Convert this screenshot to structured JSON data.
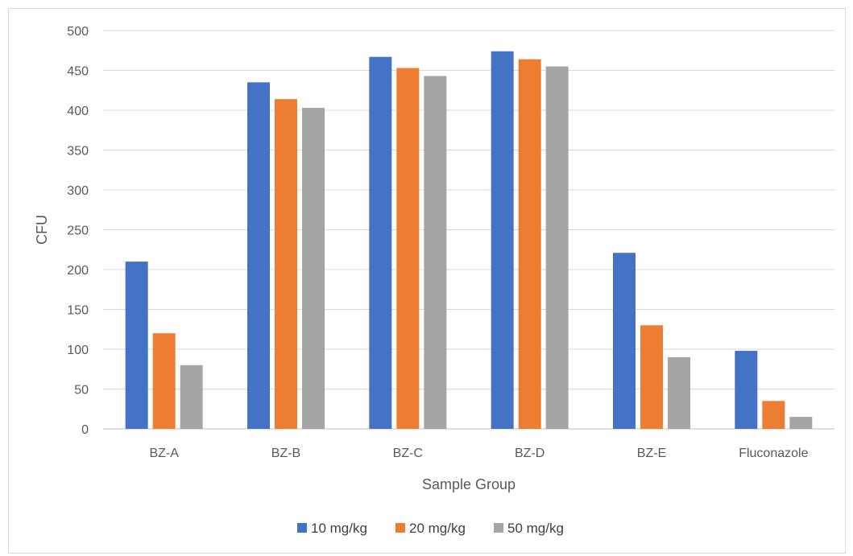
{
  "chart_data": {
    "type": "bar",
    "title": "",
    "xlabel": "Sample Group",
    "ylabel": "CFU",
    "ylim": [
      0,
      500
    ],
    "yticks": [
      0,
      50,
      100,
      150,
      200,
      250,
      300,
      350,
      400,
      450,
      500
    ],
    "grid": true,
    "legend_position": "bottom",
    "categories": [
      "BZ-A",
      "BZ-B",
      "BZ-C",
      "BZ-D",
      "BZ-E",
      "Fluconazole"
    ],
    "series": [
      {
        "name": "10 mg/kg",
        "color": "#4472c4",
        "values": [
          210,
          435,
          467,
          474,
          221,
          98
        ]
      },
      {
        "name": "20 mg/kg",
        "color": "#ed7d31",
        "values": [
          120,
          414,
          453,
          464,
          130,
          35
        ]
      },
      {
        "name": "50 mg/kg",
        "color": "#a5a5a5",
        "values": [
          80,
          403,
          443,
          455,
          90,
          15
        ]
      }
    ]
  }
}
